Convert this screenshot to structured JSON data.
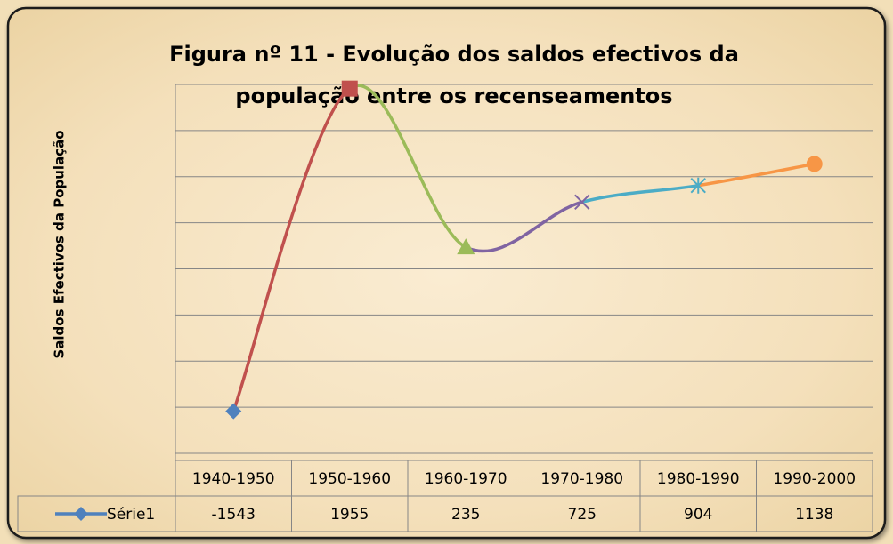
{
  "chart_data": {
    "type": "line",
    "title": [
      "Figura nº 11 - Evolução dos saldos efectivos da",
      "população entre os recenseamentos"
    ],
    "y_label": "Saldos Efectivos da População",
    "categories": [
      "1940-1950",
      "1950-1960",
      "1960-1970",
      "1970-1980",
      "1980-1990",
      "1990-2000"
    ],
    "series": [
      {
        "name": "Série1",
        "color": "#4f81bd",
        "values": [
          -1543,
          1955,
          235,
          725,
          904,
          1138
        ]
      }
    ],
    "point_colors": [
      "#4f81bd",
      "#c0504d",
      "#9bbb59",
      "#8064a2",
      "#4bacc6",
      "#f79646"
    ],
    "markers": [
      "diamond",
      "square",
      "triangle",
      "x",
      "star",
      "circle"
    ],
    "ylim": [
      -2000,
      2000
    ],
    "yticks": [
      -2000,
      -1500,
      -1000,
      -500,
      0,
      500,
      1000,
      1500,
      2000
    ],
    "grid": true,
    "smooth": true,
    "data_table": true
  }
}
